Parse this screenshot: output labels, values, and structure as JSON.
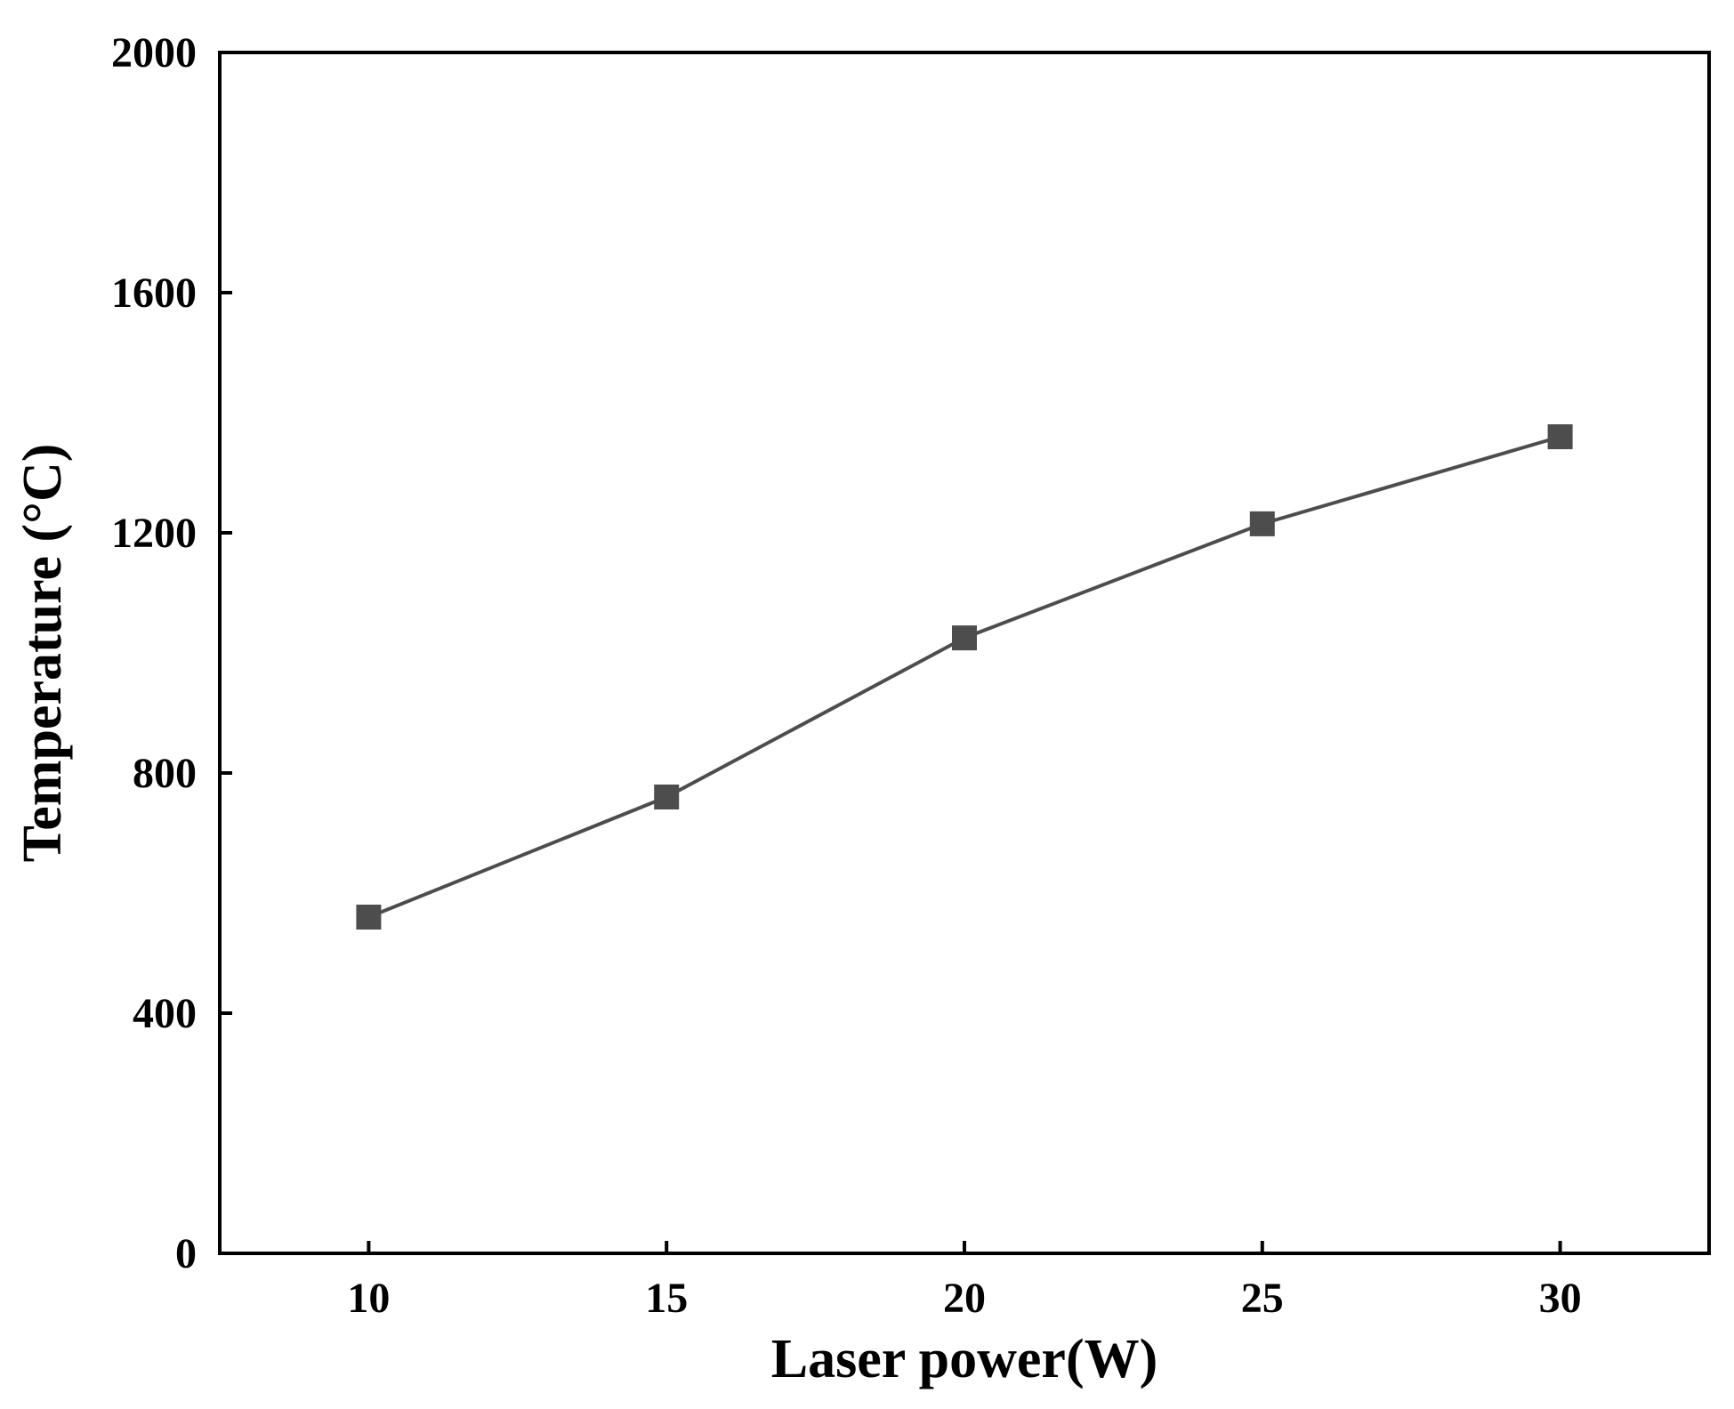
{
  "chart_data": {
    "type": "line",
    "xlabel": "Laser power(W)",
    "ylabel": "Temperature (°C)",
    "xlim": [
      7.5,
      32.5
    ],
    "ylim": [
      0,
      2000
    ],
    "xticks": [
      10,
      15,
      20,
      25,
      30
    ],
    "yticks": [
      0,
      400,
      800,
      1200,
      1600,
      2000
    ],
    "grid": false,
    "series": [
      {
        "x": [
          10,
          15,
          20,
          25,
          30
        ],
        "values": [
          560,
          760,
          1025,
          1215,
          1360
        ],
        "marker": "square",
        "color": "#4d4d4d"
      }
    ]
  }
}
